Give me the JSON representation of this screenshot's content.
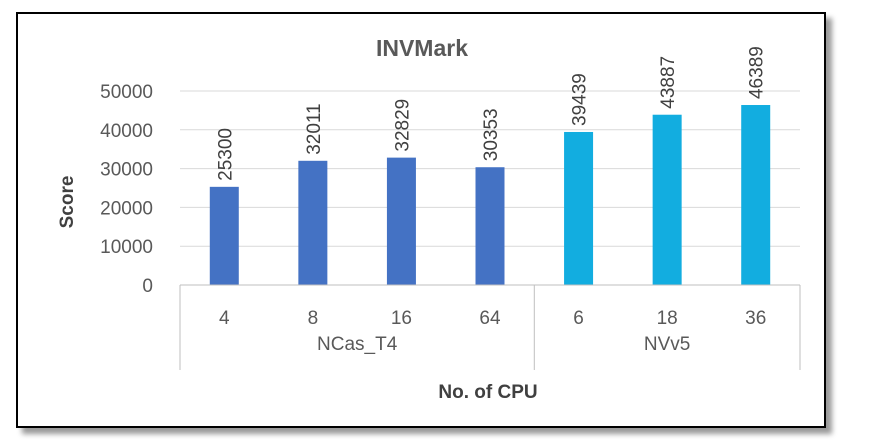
{
  "chart_data": {
    "type": "bar",
    "title": "INVMark",
    "xlabel": "No. of CPU",
    "ylabel": "Score",
    "ylim": [
      0,
      50000
    ],
    "yticks": [
      0,
      10000,
      20000,
      30000,
      40000,
      50000
    ],
    "grid": true,
    "legend": "none",
    "groups": [
      {
        "name": "NCas_T4",
        "color": "#4472c4",
        "categories": [
          "4",
          "8",
          "16",
          "64"
        ],
        "values": [
          25300,
          32011,
          32829,
          30353
        ]
      },
      {
        "name": "NVv5",
        "color": "#12ade0",
        "categories": [
          "6",
          "18",
          "36"
        ],
        "values": [
          39439,
          43887,
          46389
        ]
      }
    ]
  }
}
